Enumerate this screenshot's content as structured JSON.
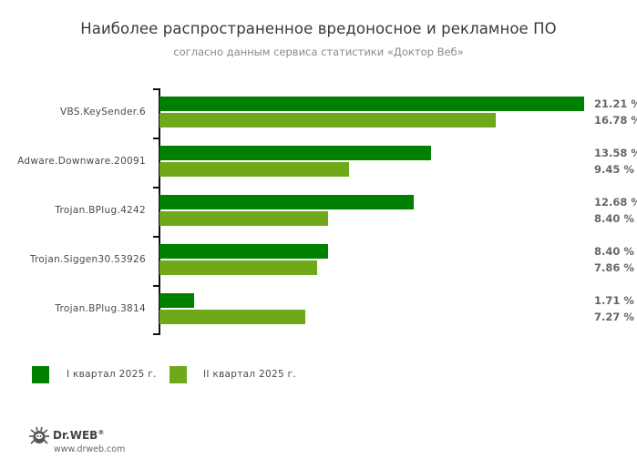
{
  "title": "Наиболее распространенное вредоносное и рекламное ПО",
  "subtitle": "согласно данным сервиса статистики «Доктор Веб»",
  "colors": {
    "q1": "#008000",
    "q2": "#6fa91a",
    "text": "#4a4a4a",
    "values": "#666666"
  },
  "legend": [
    {
      "label": "I квартал 2025 г.",
      "color": "#008000"
    },
    {
      "label": "II квартал 2025 г.",
      "color": "#6fa91a"
    }
  ],
  "branding": {
    "logo_text": "Dr.WEB",
    "registered": "®",
    "url": "www.drweb.com"
  },
  "chart_data": {
    "type": "bar",
    "orientation": "horizontal",
    "title": "Наиболее распространенное вредоносное и рекламное ПО",
    "subtitle": "согласно данным сервиса статистики «Доктор Веб»",
    "categories": [
      "VBS.KeySender.6",
      "Adware.Downware.20091",
      "Trojan.BPlug.4242",
      "Trojan.Siggen30.53926",
      "Trojan.BPlug.3814"
    ],
    "series": [
      {
        "name": "I квартал 2025 г.",
        "values": [
          21.21,
          13.58,
          12.68,
          8.4,
          1.71
        ],
        "labels": [
          "21.21 %",
          "13.58 %",
          "12.68 %",
          "8.40 %",
          "1.71 %"
        ]
      },
      {
        "name": "II квартал 2025 г.",
        "values": [
          16.78,
          9.45,
          8.4,
          7.86,
          7.27
        ],
        "labels": [
          "16.78 %",
          "9.45 %",
          "8.40 %",
          "7.86 %",
          "7.27 %"
        ]
      }
    ],
    "xlabel": "",
    "ylabel": "",
    "unit": "%",
    "grid": false,
    "legend_position": "bottom-left"
  }
}
